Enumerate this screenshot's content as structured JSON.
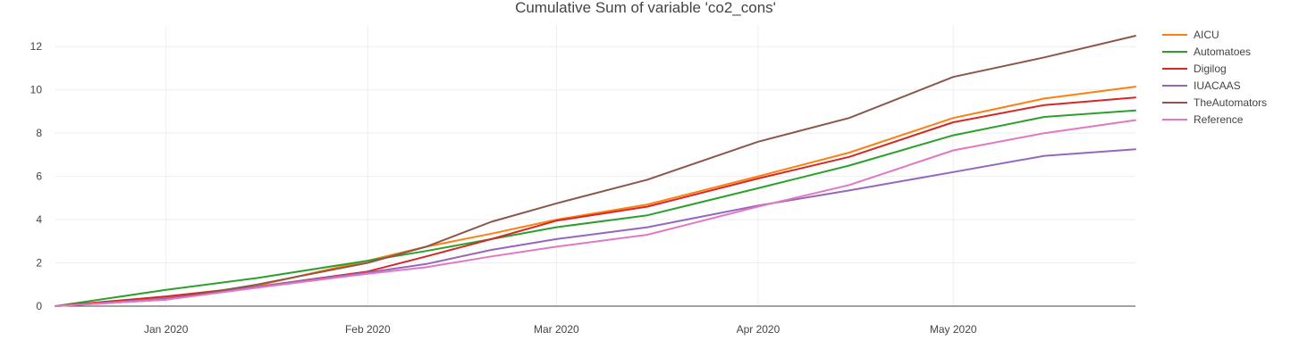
{
  "chart_data": {
    "type": "line",
    "title": "Cumulative Sum of variable 'co2_cons'",
    "xlabel": "",
    "ylabel": "",
    "x_range": [
      "2019-12-15",
      "2020-05-29"
    ],
    "ylim": [
      0,
      13
    ],
    "yticks": [
      0,
      2,
      4,
      6,
      8,
      10,
      12
    ],
    "xticks": [
      {
        "date": "2020-01-01",
        "label": "Jan 2020"
      },
      {
        "date": "2020-02-01",
        "label": "Feb 2020"
      },
      {
        "date": "2020-03-01",
        "label": "Mar 2020"
      },
      {
        "date": "2020-04-01",
        "label": "Apr 2020"
      },
      {
        "date": "2020-05-01",
        "label": "May 2020"
      }
    ],
    "grid": true,
    "legend_position": "top-right",
    "series": [
      {
        "name": "AICU",
        "color": "#ff7f0e",
        "points": [
          [
            "2019-12-15",
            0
          ],
          [
            "2020-01-01",
            0.4
          ],
          [
            "2020-01-15",
            0.95
          ],
          [
            "2020-02-01",
            2.1
          ],
          [
            "2020-02-10",
            2.75
          ],
          [
            "2020-02-20",
            3.35
          ],
          [
            "2020-03-01",
            4.0
          ],
          [
            "2020-03-15",
            4.7
          ],
          [
            "2020-04-01",
            6.0
          ],
          [
            "2020-04-15",
            7.1
          ],
          [
            "2020-05-01",
            8.7
          ],
          [
            "2020-05-15",
            9.6
          ],
          [
            "2020-05-29",
            10.15
          ]
        ]
      },
      {
        "name": "Automatoes",
        "color": "#2ca02c",
        "points": [
          [
            "2019-12-15",
            0
          ],
          [
            "2020-01-01",
            0.75
          ],
          [
            "2020-01-15",
            1.3
          ],
          [
            "2020-02-01",
            2.1
          ],
          [
            "2020-02-10",
            2.55
          ],
          [
            "2020-02-20",
            3.1
          ],
          [
            "2020-03-01",
            3.65
          ],
          [
            "2020-03-15",
            4.2
          ],
          [
            "2020-04-01",
            5.45
          ],
          [
            "2020-04-15",
            6.5
          ],
          [
            "2020-05-01",
            7.9
          ],
          [
            "2020-05-15",
            8.75
          ],
          [
            "2020-05-29",
            9.05
          ]
        ]
      },
      {
        "name": "Digilog",
        "color": "#d62728",
        "points": [
          [
            "2019-12-15",
            0
          ],
          [
            "2020-01-01",
            0.45
          ],
          [
            "2020-01-15",
            0.9
          ],
          [
            "2020-02-01",
            1.6
          ],
          [
            "2020-02-10",
            2.3
          ],
          [
            "2020-02-20",
            3.1
          ],
          [
            "2020-03-01",
            3.95
          ],
          [
            "2020-03-15",
            4.6
          ],
          [
            "2020-04-01",
            5.9
          ],
          [
            "2020-04-15",
            6.9
          ],
          [
            "2020-05-01",
            8.5
          ],
          [
            "2020-05-15",
            9.3
          ],
          [
            "2020-05-29",
            9.65
          ]
        ]
      },
      {
        "name": "IUACAAS",
        "color": "#9467bd",
        "points": [
          [
            "2019-12-15",
            0
          ],
          [
            "2020-01-01",
            0.35
          ],
          [
            "2020-01-15",
            0.9
          ],
          [
            "2020-02-01",
            1.55
          ],
          [
            "2020-02-10",
            1.95
          ],
          [
            "2020-02-20",
            2.6
          ],
          [
            "2020-03-01",
            3.1
          ],
          [
            "2020-03-15",
            3.65
          ],
          [
            "2020-04-01",
            4.65
          ],
          [
            "2020-04-15",
            5.35
          ],
          [
            "2020-05-01",
            6.2
          ],
          [
            "2020-05-15",
            6.95
          ],
          [
            "2020-05-29",
            7.25
          ]
        ]
      },
      {
        "name": "TheAutomators",
        "color": "#8c564b",
        "points": [
          [
            "2019-12-15",
            0
          ],
          [
            "2020-01-01",
            0.3
          ],
          [
            "2020-01-15",
            1.0
          ],
          [
            "2020-02-01",
            2.0
          ],
          [
            "2020-02-10",
            2.75
          ],
          [
            "2020-02-20",
            3.9
          ],
          [
            "2020-03-01",
            4.75
          ],
          [
            "2020-03-15",
            5.85
          ],
          [
            "2020-04-01",
            7.6
          ],
          [
            "2020-04-15",
            8.7
          ],
          [
            "2020-05-01",
            10.6
          ],
          [
            "2020-05-15",
            11.5
          ],
          [
            "2020-05-29",
            12.5
          ]
        ]
      },
      {
        "name": "Reference",
        "color": "#e377c2",
        "points": [
          [
            "2019-12-15",
            0
          ],
          [
            "2020-01-01",
            0.3
          ],
          [
            "2020-01-15",
            0.85
          ],
          [
            "2020-02-01",
            1.5
          ],
          [
            "2020-02-10",
            1.8
          ],
          [
            "2020-02-20",
            2.3
          ],
          [
            "2020-03-01",
            2.75
          ],
          [
            "2020-03-15",
            3.3
          ],
          [
            "2020-04-01",
            4.6
          ],
          [
            "2020-04-15",
            5.6
          ],
          [
            "2020-05-01",
            7.2
          ],
          [
            "2020-05-15",
            8.0
          ],
          [
            "2020-05-29",
            8.6
          ]
        ]
      }
    ]
  }
}
